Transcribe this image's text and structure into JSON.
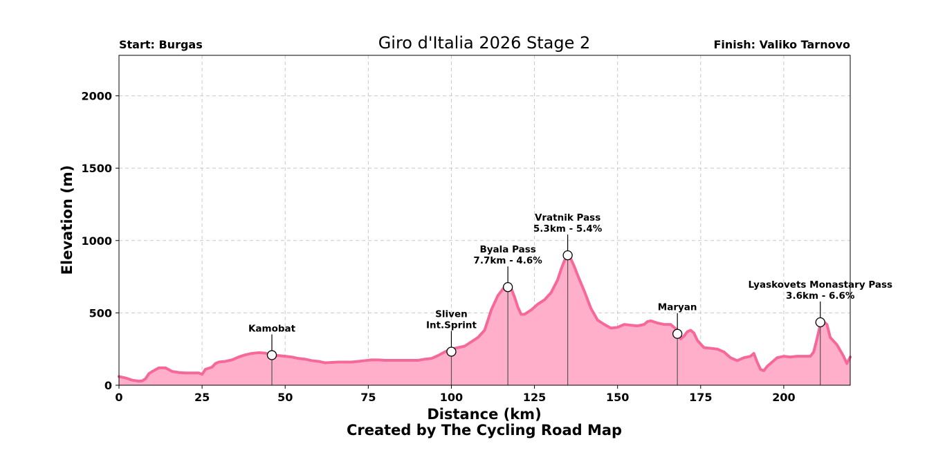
{
  "chart_data": {
    "type": "area",
    "title": "Giro d'Italia 2026 Stage 2",
    "start_label": "Start: Burgas",
    "finish_label": "Finish: Valiko Tarnovo",
    "xlabel": "Distance (km)",
    "ylabel": "Elevation (m)",
    "credit": "Created by The Cycling Road Map",
    "xlim": [
      0,
      220
    ],
    "ylim": [
      0,
      2280
    ],
    "xticks": [
      0,
      25,
      50,
      75,
      100,
      125,
      150,
      175,
      200
    ],
    "yticks": [
      0,
      500,
      1000,
      1500,
      2000
    ],
    "grid": true,
    "line_color": "#f7689a",
    "fill_color": "#ffafc9",
    "x": [
      0,
      2,
      4,
      6,
      7,
      8,
      9,
      10,
      12,
      14,
      16,
      17,
      18,
      20,
      22,
      24,
      25,
      26,
      28,
      29,
      30,
      32,
      34,
      36,
      38,
      40,
      42,
      44,
      46,
      48,
      50,
      52,
      54,
      56,
      58,
      60,
      62,
      64,
      66,
      68,
      70,
      72,
      74,
      76,
      78,
      80,
      82,
      84,
      86,
      88,
      90,
      92,
      94,
      96,
      98,
      100,
      102,
      104,
      106,
      108,
      110,
      112,
      114,
      116,
      117,
      118,
      119,
      120,
      121,
      122,
      124,
      126,
      128,
      130,
      132,
      133,
      134,
      135,
      136,
      137,
      138,
      140,
      142,
      144,
      146,
      148,
      150,
      152,
      154,
      156,
      158,
      159,
      160,
      162,
      164,
      166,
      167,
      168,
      169,
      170,
      171,
      172,
      173,
      174,
      176,
      178,
      180,
      182,
      184,
      186,
      188,
      190,
      191,
      192,
      193,
      194,
      195,
      196,
      198,
      200,
      202,
      204,
      206,
      208,
      209,
      210,
      211,
      212,
      213,
      214,
      216,
      218,
      219,
      220
    ],
    "y": [
      60,
      50,
      35,
      28,
      30,
      45,
      80,
      95,
      120,
      120,
      95,
      92,
      88,
      85,
      85,
      85,
      75,
      110,
      125,
      150,
      160,
      165,
      175,
      195,
      210,
      220,
      225,
      222,
      205,
      205,
      200,
      195,
      185,
      180,
      170,
      165,
      155,
      158,
      160,
      160,
      160,
      165,
      170,
      175,
      175,
      172,
      172,
      172,
      172,
      172,
      172,
      180,
      185,
      205,
      230,
      250,
      260,
      270,
      300,
      330,
      380,
      520,
      620,
      680,
      690,
      670,
      610,
      540,
      490,
      490,
      520,
      560,
      590,
      640,
      730,
      800,
      860,
      895,
      870,
      820,
      760,
      650,
      530,
      450,
      420,
      395,
      400,
      420,
      415,
      410,
      420,
      440,
      445,
      430,
      420,
      420,
      400,
      380,
      320,
      340,
      370,
      380,
      360,
      310,
      260,
      255,
      250,
      230,
      190,
      170,
      190,
      200,
      220,
      160,
      110,
      100,
      130,
      150,
      190,
      200,
      195,
      200,
      200,
      200,
      230,
      320,
      420,
      440,
      420,
      330,
      280,
      200,
      150,
      195
    ],
    "annotations": [
      {
        "x": 46,
        "y": 208,
        "text": "Kamobat"
      },
      {
        "x": 100,
        "y": 232,
        "text": "Sliven\nInt.Sprint"
      },
      {
        "x": 117,
        "y": 678,
        "text": "Byala Pass\n7.7km - 4.6%"
      },
      {
        "x": 135,
        "y": 898,
        "text": "Vratnik Pass\n5.3km - 5.4%"
      },
      {
        "x": 168,
        "y": 355,
        "text": "Maryan"
      },
      {
        "x": 211,
        "y": 435,
        "text": "Lyaskovets Monastary Pass\n3.6km - 6.6%"
      }
    ]
  }
}
